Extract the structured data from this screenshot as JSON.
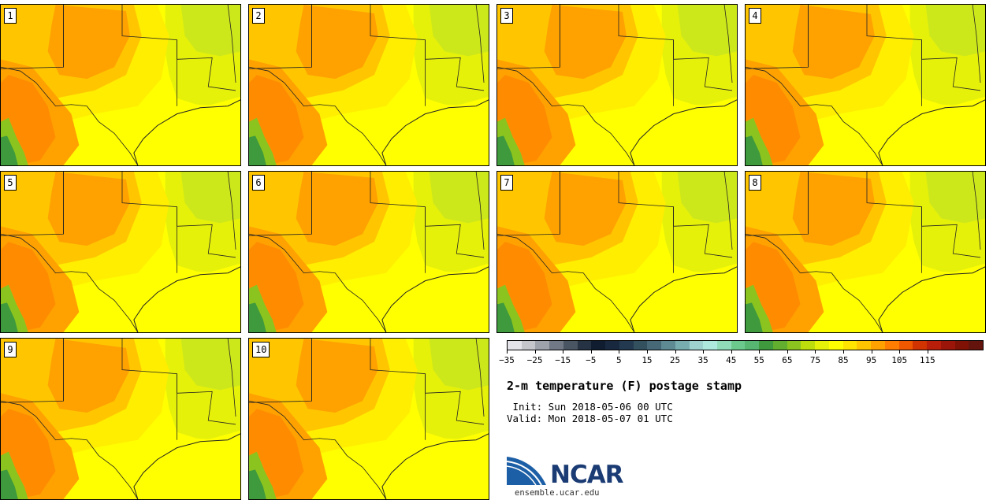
{
  "panels": [
    {
      "label": "1"
    },
    {
      "label": "2"
    },
    {
      "label": "3"
    },
    {
      "label": "4"
    },
    {
      "label": "5"
    },
    {
      "label": "6"
    },
    {
      "label": "7"
    },
    {
      "label": "8"
    },
    {
      "label": "9"
    },
    {
      "label": "10"
    }
  ],
  "colorbar": {
    "colors": [
      "#e3e3e9",
      "#c4c6cc",
      "#9da2ab",
      "#727986",
      "#4a5563",
      "#263344",
      "#101d30",
      "#17283f",
      "#22394f",
      "#33505f",
      "#466877",
      "#5d8a93",
      "#78adb0",
      "#9dd2cf",
      "#aee9de",
      "#90dcb8",
      "#6cc98e",
      "#56b672",
      "#3e9a3c",
      "#62ae2f",
      "#8cc41f",
      "#bedd0d",
      "#e6f10a",
      "#ffff00",
      "#ffe400",
      "#ffc600",
      "#ffa200",
      "#ff7d00",
      "#f05800",
      "#d13400",
      "#b91e0b",
      "#9b1509",
      "#7f1205",
      "#64140d"
    ],
    "ticks": [
      "−35",
      "−25",
      "−15",
      "−5",
      "5",
      "15",
      "25",
      "35",
      "45",
      "55",
      "65",
      "75",
      "85",
      "95",
      "105",
      "115"
    ]
  },
  "title": "2-m temperature (F) postage stamp",
  "init_line": " Init: Sun 2018-05-06 00 UTC",
  "valid_line": "Valid: Mon 2018-05-07 01 UTC",
  "logo": {
    "text": "NCAR",
    "colors": {
      "blue": "#1d5fa6",
      "navy": "#1a3b73"
    }
  },
  "url": "ensemble.ucar.edu",
  "map_colors": {
    "yellow": "#ffff00",
    "light_yellow": "#ffee00",
    "lime": "#e6f10a",
    "yellow_green": "#cde81a",
    "gold": "#ffc600",
    "orange": "#ffa200",
    "dark_orange": "#ff8c00",
    "green": "#3e9a3c",
    "light_green": "#8cc41f"
  }
}
